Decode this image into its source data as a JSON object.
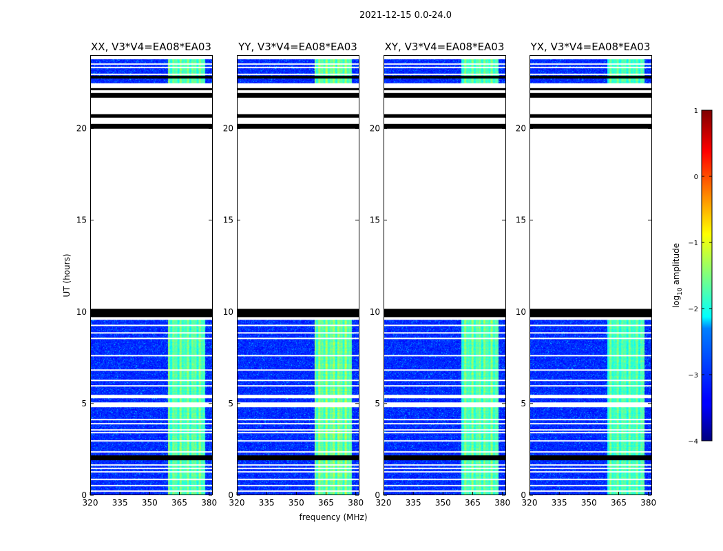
{
  "chart_data": {
    "type": "heatmap",
    "suptitle": "2021-12-15 0.0-24.0",
    "xlabel": "frequency (MHz)",
    "ylabel": "UT (hours)",
    "xlim": [
      320,
      381.5
    ],
    "ylim": [
      0,
      24
    ],
    "xticks": [
      320,
      335,
      350,
      365,
      380
    ],
    "yticks": [
      0,
      5,
      10,
      15,
      20
    ],
    "panels": [
      {
        "title": "XX, V3*V4=EA08*EA03",
        "rfi_band_mhz": [
          359,
          378
        ],
        "rfi_strength": 0.55
      },
      {
        "title": "YY, V3*V4=EA08*EA03",
        "rfi_band_mhz": [
          359,
          378
        ],
        "rfi_strength": 0.65
      },
      {
        "title": "XY, V3*V4=EA08*EA03",
        "rfi_band_mhz": [
          359,
          378
        ],
        "rfi_strength": 0.55
      },
      {
        "title": "YX, V3*V4=EA08*EA03",
        "rfi_band_mhz": [
          359,
          378
        ],
        "rfi_strength": 0.5
      }
    ],
    "data_segments_hours": [
      [
        0,
        4.8
      ],
      [
        5.1,
        5.3
      ],
      [
        5.5,
        9.6
      ],
      [
        22.5,
        23.8
      ]
    ],
    "flagged_black_hours": [
      [
        1.95,
        2.2
      ],
      [
        9.75,
        10.2
      ],
      [
        20.0,
        20.25
      ],
      [
        20.6,
        20.8
      ],
      [
        21.7,
        21.95
      ],
      [
        22.1,
        22.2
      ],
      [
        22.75,
        22.9
      ]
    ],
    "gap_white_lines_hours": [
      0.25,
      0.55,
      0.9,
      1.3,
      1.5,
      1.7,
      2.4,
      3.0,
      3.45,
      3.6,
      3.95,
      4.15,
      6.0,
      6.3,
      6.85,
      7.65,
      8.6,
      8.9,
      9.3,
      23.0,
      23.35,
      23.55
    ],
    "colorbar": {
      "label": "log10 amplitude",
      "label_main": "log",
      "label_sub": "10",
      "label_rest": " amplitude",
      "vmin": -4,
      "vmax": 1,
      "ticks": [
        -4,
        -3,
        -2,
        -1,
        0,
        1
      ],
      "tick_labels": [
        "−4",
        "−3",
        "−2",
        "−1",
        "0",
        "1"
      ]
    }
  }
}
